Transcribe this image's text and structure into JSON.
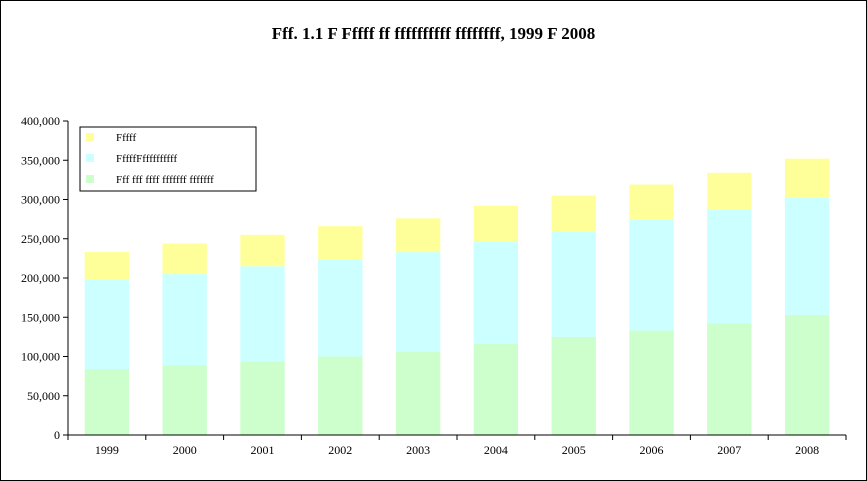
{
  "chart_data": {
    "type": "bar",
    "stacked": true,
    "title": "Fff. 1.1 F Fffff ff ffffffffff ffffffff, 1999 F 2008",
    "categories": [
      "1999",
      "2000",
      "2001",
      "2002",
      "2003",
      "2004",
      "2005",
      "2006",
      "2007",
      "2008"
    ],
    "series": [
      {
        "name": "Fff fff ffff fffffff fffffff",
        "color": "#ccffcc",
        "values": [
          84000,
          89000,
          94000,
          100000,
          106000,
          116000,
          125000,
          133000,
          142000,
          153000
        ]
      },
      {
        "name": "FffffFffffffffff",
        "color": "#ccffff",
        "values": [
          114000,
          116000,
          121000,
          123000,
          127000,
          130000,
          134000,
          141000,
          145000,
          150000
        ]
      },
      {
        "name": "Fffff",
        "color": "#ffff99",
        "values": [
          35000,
          39000,
          40000,
          43000,
          43000,
          46000,
          46000,
          45000,
          47000,
          49000
        ]
      }
    ],
    "yticks": [
      "0",
      "50,000",
      "100,000",
      "150,000",
      "200,000",
      "250,000",
      "300,000",
      "350,000",
      "400,000"
    ],
    "ylim": [
      0,
      400000
    ],
    "grid": false,
    "legend_position": "top-left"
  }
}
